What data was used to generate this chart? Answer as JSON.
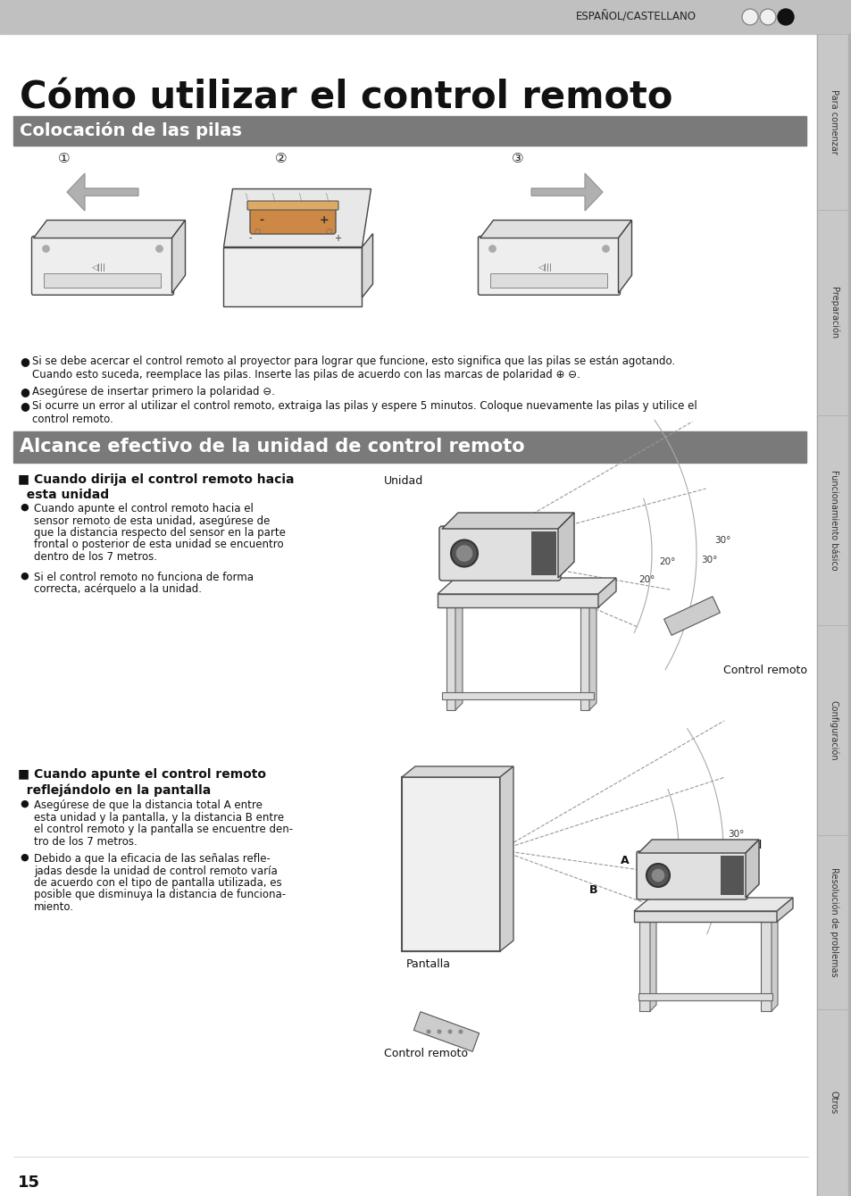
{
  "page_bg": "#ffffff",
  "top_bar_color": "#c0c0c0",
  "top_bar_text": "ESPAÑOL/CASTELLANO",
  "title": "Cómo utilizar el control remoto",
  "section1_bg": "#7a7a7a",
  "section1_text": "Colocación de las pilas",
  "section2_bg": "#7a7a7a",
  "section2_text": "Alcance efectivo de la unidad de control remoto",
  "bullet1_line1": "Si se debe acercar el control remoto al proyector para lograr que funcione, esto significa que las pilas se están agotando.",
  "bullet1_line2": "Cuando esto suceda, reemplace las pilas. Inserte las pilas de acuerdo con las marcas de polaridad ⊕ ⊖.",
  "bullet2": "Asegúrese de insertar primero la polaridad ⊖.",
  "bullet3_line1": "Si ocurre un error al utilizar el control remoto, extraiga las pilas y espere 5 minutos. Coloque nuevamente las pilas y utilice el",
  "bullet3_line2": "control remoto.",
  "right_tab_texts": [
    "Para comenzar",
    "Preparación",
    "Funcionamiento básico",
    "Configuración",
    "Resolución de problemas",
    "Otros"
  ],
  "page_number": "15",
  "step_labels": [
    "①",
    "②",
    "③"
  ]
}
